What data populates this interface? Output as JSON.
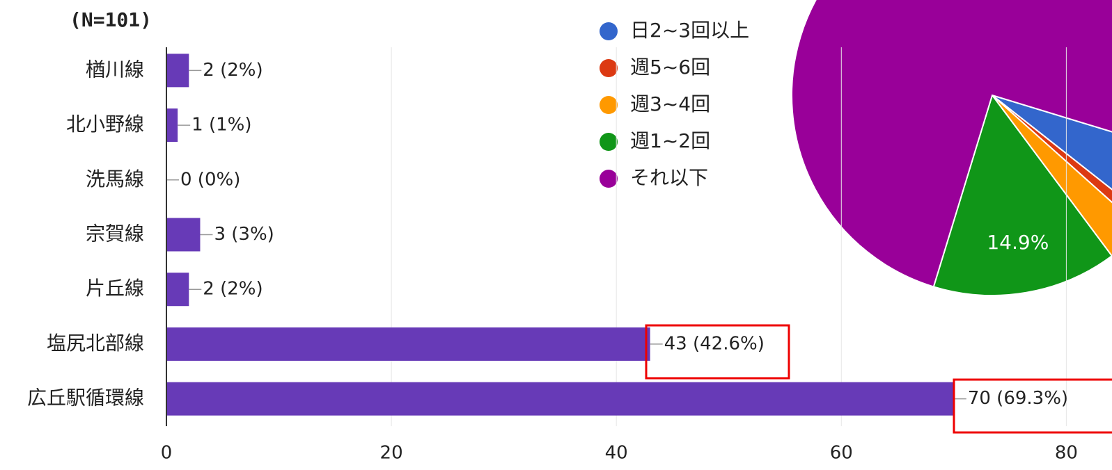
{
  "chart_data": [
    {
      "type": "bar",
      "orientation": "horizontal",
      "subtitle": "(N=101)",
      "categories": [
        "楢川線",
        "北小野線",
        "洗馬線",
        "宗賀線",
        "片丘線",
        "塩尻北部線",
        "広丘駅循環線"
      ],
      "values": [
        2,
        1,
        0,
        3,
        2,
        43,
        70
      ],
      "value_labels": [
        "2 (2%)",
        "1 (1%)",
        "0 (0%)",
        "3 (3%)",
        "2 (2%)",
        "43 (42.6%)",
        "70 (69.3%)"
      ],
      "color": "#673ab7",
      "xlim": [
        0,
        84
      ],
      "xticks": [
        0,
        20,
        40,
        60,
        80
      ],
      "grid": true
    },
    {
      "type": "pie",
      "categories": [
        "日2~3回以上",
        "週5~6回",
        "週3~4回",
        "週1~2回",
        "それ以下"
      ],
      "values": [
        5.9,
        1,
        3.2,
        14.9,
        75
      ],
      "value_labels": [
        null,
        null,
        null,
        "14.9%",
        null
      ],
      "colors": [
        "#3366cc",
        "#dc3912",
        "#ff9900",
        "#109618",
        "#990099"
      ]
    }
  ]
}
